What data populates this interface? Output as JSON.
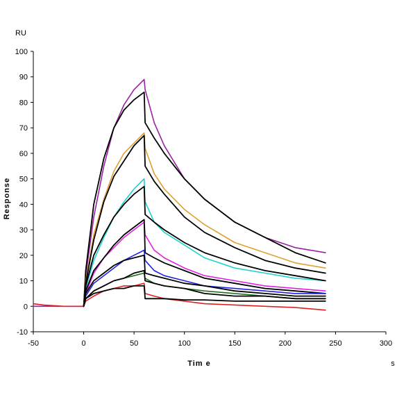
{
  "chart_data": {
    "type": "line",
    "xlabel": "Tim e",
    "xunit": "s",
    "ylabel": "Response",
    "yunit": "RU",
    "xlim": [
      -50,
      300
    ],
    "ylim": [
      -10,
      100
    ],
    "xticks": [
      -50,
      0,
      50,
      100,
      150,
      200,
      250,
      300
    ],
    "yticks": [
      -10,
      0,
      10,
      20,
      30,
      40,
      50,
      60,
      70,
      80,
      90,
      100
    ],
    "grid": false,
    "legend": "none",
    "series": [
      {
        "color": "#9b1fa5",
        "points": [
          [
            -50,
            0
          ],
          [
            0,
            0
          ],
          [
            2,
            12
          ],
          [
            10,
            35
          ],
          [
            20,
            55
          ],
          [
            30,
            70
          ],
          [
            40,
            79
          ],
          [
            50,
            85
          ],
          [
            60,
            89
          ],
          [
            61,
            85
          ],
          [
            70,
            72
          ],
          [
            80,
            63
          ],
          [
            100,
            50
          ],
          [
            120,
            42
          ],
          [
            150,
            33
          ],
          [
            180,
            27
          ],
          [
            210,
            23
          ],
          [
            240,
            21
          ]
        ]
      },
      {
        "color": "#000000",
        "points": [
          [
            0,
            0
          ],
          [
            2,
            14
          ],
          [
            10,
            40
          ],
          [
            20,
            58
          ],
          [
            30,
            70
          ],
          [
            40,
            77
          ],
          [
            50,
            81
          ],
          [
            60,
            84
          ],
          [
            61,
            72
          ],
          [
            70,
            66
          ],
          [
            80,
            60
          ],
          [
            100,
            50
          ],
          [
            120,
            42
          ],
          [
            150,
            33
          ],
          [
            180,
            27
          ],
          [
            210,
            21
          ],
          [
            240,
            17
          ]
        ]
      },
      {
        "color": "#e0a030",
        "points": [
          [
            0,
            0
          ],
          [
            2,
            10
          ],
          [
            10,
            28
          ],
          [
            20,
            42
          ],
          [
            30,
            53
          ],
          [
            40,
            60
          ],
          [
            50,
            64
          ],
          [
            60,
            68
          ],
          [
            61,
            62
          ],
          [
            70,
            52
          ],
          [
            80,
            46
          ],
          [
            100,
            38
          ],
          [
            120,
            32
          ],
          [
            150,
            25
          ],
          [
            180,
            21
          ],
          [
            210,
            17
          ],
          [
            240,
            15
          ]
        ]
      },
      {
        "color": "#000000",
        "points": [
          [
            0,
            0
          ],
          [
            2,
            9
          ],
          [
            10,
            26
          ],
          [
            20,
            41
          ],
          [
            30,
            51
          ],
          [
            40,
            57
          ],
          [
            50,
            63
          ],
          [
            60,
            67
          ],
          [
            61,
            55
          ],
          [
            70,
            49
          ],
          [
            80,
            44
          ],
          [
            100,
            35
          ],
          [
            120,
            29
          ],
          [
            150,
            23
          ],
          [
            180,
            18
          ],
          [
            210,
            15
          ],
          [
            240,
            13
          ]
        ]
      },
      {
        "color": "#20d0d0",
        "points": [
          [
            0,
            0
          ],
          [
            2,
            7
          ],
          [
            10,
            18
          ],
          [
            20,
            27
          ],
          [
            30,
            35
          ],
          [
            40,
            41
          ],
          [
            50,
            46
          ],
          [
            60,
            50
          ],
          [
            61,
            41
          ],
          [
            70,
            33
          ],
          [
            80,
            29
          ],
          [
            100,
            24
          ],
          [
            120,
            19
          ],
          [
            150,
            15
          ],
          [
            180,
            13
          ],
          [
            210,
            11
          ],
          [
            240,
            10
          ]
        ]
      },
      {
        "color": "#000000",
        "points": [
          [
            0,
            0
          ],
          [
            2,
            8
          ],
          [
            10,
            20
          ],
          [
            20,
            28
          ],
          [
            30,
            35
          ],
          [
            40,
            40
          ],
          [
            50,
            44
          ],
          [
            60,
            47
          ],
          [
            61,
            36
          ],
          [
            70,
            33
          ],
          [
            80,
            30
          ],
          [
            100,
            25
          ],
          [
            120,
            21
          ],
          [
            150,
            17
          ],
          [
            180,
            14
          ],
          [
            210,
            12
          ],
          [
            240,
            10
          ]
        ]
      },
      {
        "color": "#e020e0",
        "points": [
          [
            0,
            0
          ],
          [
            2,
            5
          ],
          [
            10,
            13
          ],
          [
            20,
            19
          ],
          [
            30,
            23
          ],
          [
            40,
            27
          ],
          [
            50,
            30
          ],
          [
            60,
            33
          ],
          [
            61,
            28
          ],
          [
            70,
            22
          ],
          [
            80,
            19
          ],
          [
            100,
            15
          ],
          [
            120,
            12
          ],
          [
            150,
            10
          ],
          [
            180,
            8
          ],
          [
            210,
            7
          ],
          [
            240,
            6
          ]
        ]
      },
      {
        "color": "#000000",
        "points": [
          [
            0,
            0
          ],
          [
            2,
            6
          ],
          [
            10,
            14
          ],
          [
            20,
            19
          ],
          [
            30,
            24
          ],
          [
            40,
            28
          ],
          [
            50,
            31
          ],
          [
            60,
            34
          ],
          [
            61,
            21
          ],
          [
            70,
            19
          ],
          [
            80,
            17
          ],
          [
            100,
            14
          ],
          [
            120,
            11
          ],
          [
            150,
            9
          ],
          [
            180,
            7
          ],
          [
            210,
            6
          ],
          [
            240,
            5
          ]
        ]
      },
      {
        "color": "#2020e0",
        "points": [
          [
            0,
            0
          ],
          [
            2,
            4
          ],
          [
            10,
            9
          ],
          [
            20,
            12
          ],
          [
            30,
            15
          ],
          [
            40,
            18
          ],
          [
            50,
            20
          ],
          [
            60,
            22
          ],
          [
            61,
            18
          ],
          [
            70,
            14
          ],
          [
            80,
            12
          ],
          [
            100,
            10
          ],
          [
            120,
            8
          ],
          [
            150,
            7
          ],
          [
            180,
            6
          ],
          [
            210,
            5
          ],
          [
            240,
            5
          ]
        ]
      },
      {
        "color": "#000000",
        "points": [
          [
            0,
            0
          ],
          [
            2,
            5
          ],
          [
            10,
            10
          ],
          [
            20,
            13
          ],
          [
            30,
            16
          ],
          [
            40,
            18
          ],
          [
            50,
            19
          ],
          [
            60,
            20
          ],
          [
            61,
            13
          ],
          [
            70,
            12
          ],
          [
            80,
            11
          ],
          [
            100,
            9
          ],
          [
            120,
            8
          ],
          [
            150,
            6
          ],
          [
            180,
            5
          ],
          [
            210,
            4
          ],
          [
            240,
            4
          ]
        ]
      },
      {
        "color": "#207020",
        "points": [
          [
            0,
            0
          ],
          [
            2,
            3
          ],
          [
            10,
            6
          ],
          [
            20,
            8
          ],
          [
            30,
            10
          ],
          [
            40,
            11
          ],
          [
            50,
            12
          ],
          [
            60,
            13
          ],
          [
            61,
            11
          ],
          [
            70,
            9
          ],
          [
            80,
            8
          ],
          [
            100,
            7
          ],
          [
            120,
            6
          ],
          [
            150,
            5
          ],
          [
            180,
            4
          ],
          [
            210,
            3
          ],
          [
            240,
            3
          ]
        ]
      },
      {
        "color": "#000000",
        "points": [
          [
            0,
            0
          ],
          [
            2,
            3
          ],
          [
            10,
            6
          ],
          [
            20,
            8
          ],
          [
            30,
            10
          ],
          [
            40,
            11
          ],
          [
            50,
            13
          ],
          [
            60,
            14
          ],
          [
            61,
            10
          ],
          [
            70,
            9
          ],
          [
            80,
            8
          ],
          [
            100,
            7
          ],
          [
            120,
            5
          ],
          [
            150,
            4
          ],
          [
            180,
            4
          ],
          [
            210,
            3
          ],
          [
            240,
            3
          ]
        ]
      },
      {
        "color": "#e02020",
        "points": [
          [
            -50,
            1
          ],
          [
            -40,
            0.5
          ],
          [
            -20,
            0
          ],
          [
            0,
            0
          ],
          [
            2,
            2
          ],
          [
            10,
            4
          ],
          [
            20,
            6
          ],
          [
            30,
            7
          ],
          [
            40,
            8
          ],
          [
            50,
            8
          ],
          [
            60,
            9
          ],
          [
            61,
            5
          ],
          [
            70,
            4
          ],
          [
            80,
            3
          ],
          [
            100,
            2
          ],
          [
            120,
            1
          ],
          [
            150,
            0.5
          ],
          [
            180,
            0
          ],
          [
            210,
            -0.5
          ],
          [
            240,
            -1.5
          ]
        ]
      },
      {
        "color": "#000000",
        "points": [
          [
            0,
            0
          ],
          [
            2,
            3
          ],
          [
            10,
            5
          ],
          [
            20,
            6
          ],
          [
            30,
            7
          ],
          [
            40,
            7
          ],
          [
            50,
            8
          ],
          [
            60,
            8
          ],
          [
            61,
            3
          ],
          [
            70,
            3
          ],
          [
            80,
            3
          ],
          [
            100,
            2.5
          ],
          [
            120,
            2.5
          ],
          [
            150,
            2
          ],
          [
            180,
            2
          ],
          [
            210,
            2
          ],
          [
            240,
            2
          ]
        ]
      }
    ]
  }
}
